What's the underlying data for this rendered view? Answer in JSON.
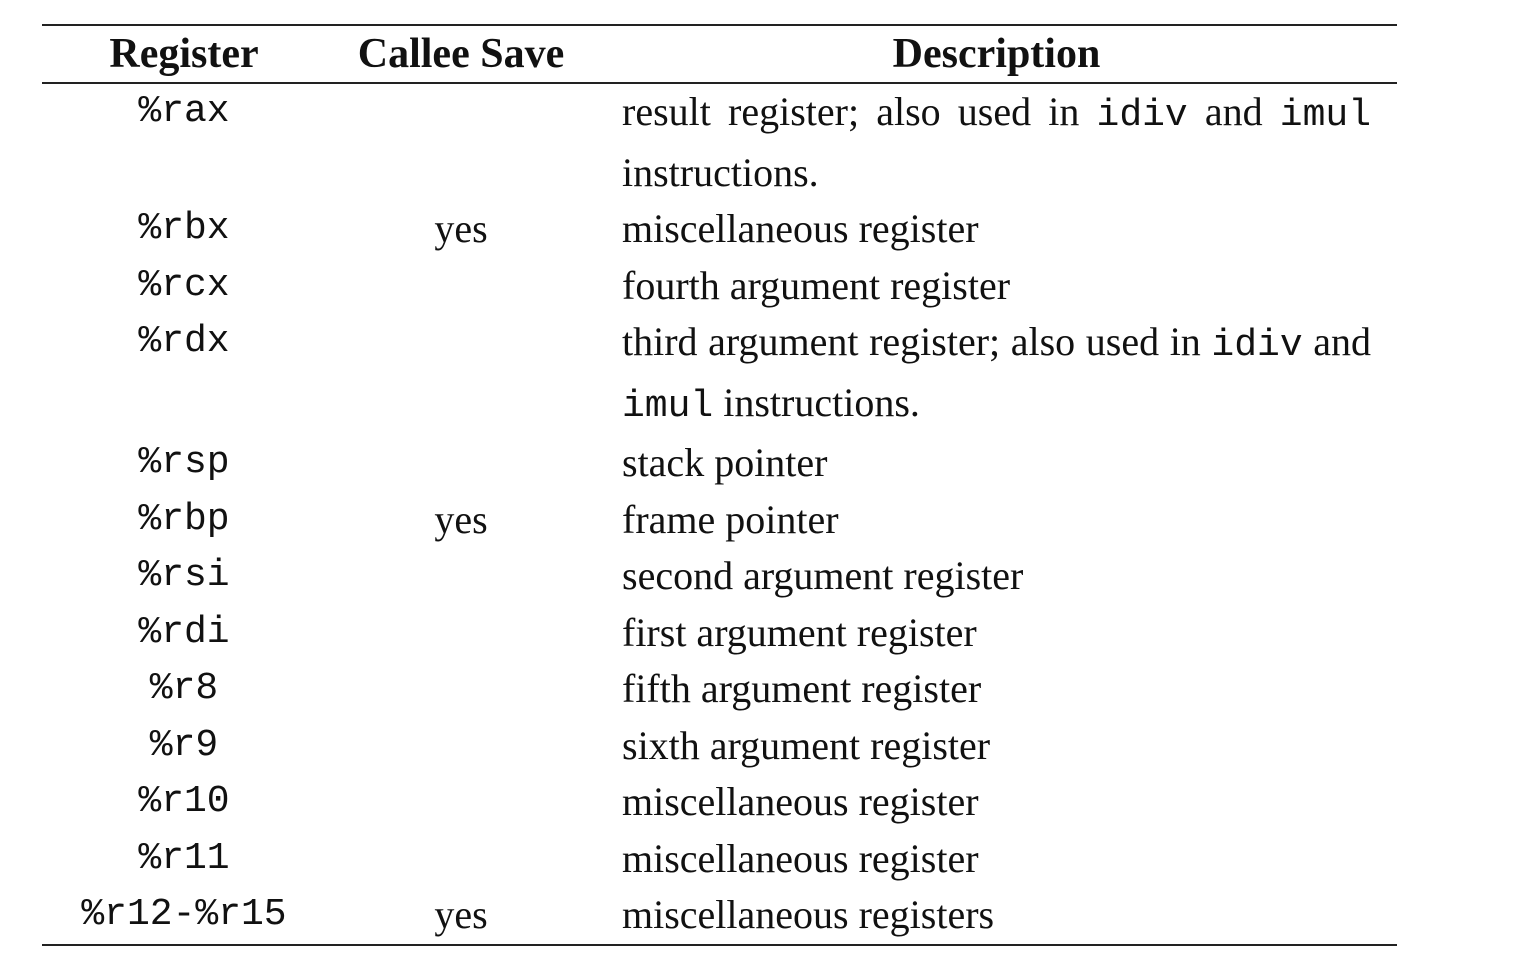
{
  "header": {
    "register": "Register",
    "callee_save": "Callee Save",
    "description": "Description"
  },
  "rows": [
    {
      "register": "%rax",
      "callee_save": "",
      "description": "",
      "parts": [
        "result register; also used in ",
        "idiv",
        " and ",
        "imul",
        " instructions."
      ]
    },
    {
      "register": "%rbx",
      "callee_save": "yes",
      "description": "miscellaneous register"
    },
    {
      "register": "%rcx",
      "callee_save": "",
      "description": "fourth argument register"
    },
    {
      "register": "%rdx",
      "callee_save": "",
      "description": "",
      "parts": [
        "third argument register; also used in ",
        "idiv",
        " and ",
        "imul",
        " instructions."
      ]
    },
    {
      "register": "%rsp",
      "callee_save": "",
      "description": "stack pointer"
    },
    {
      "register": "%rbp",
      "callee_save": "yes",
      "description": "frame pointer"
    },
    {
      "register": "%rsi",
      "callee_save": "",
      "description": "second argument register"
    },
    {
      "register": "%rdi",
      "callee_save": "",
      "description": "first argument register"
    },
    {
      "register": "%r8",
      "callee_save": "",
      "description": "fifth argument register"
    },
    {
      "register": "%r9",
      "callee_save": "",
      "description": "sixth argument register"
    },
    {
      "register": "%r10",
      "callee_save": "",
      "description": "miscellaneous register"
    },
    {
      "register": "%r11",
      "callee_save": "",
      "description": "miscellaneous register"
    },
    {
      "register": "%r12-%r15",
      "callee_save": "yes",
      "description": "miscellaneous registers"
    }
  ]
}
